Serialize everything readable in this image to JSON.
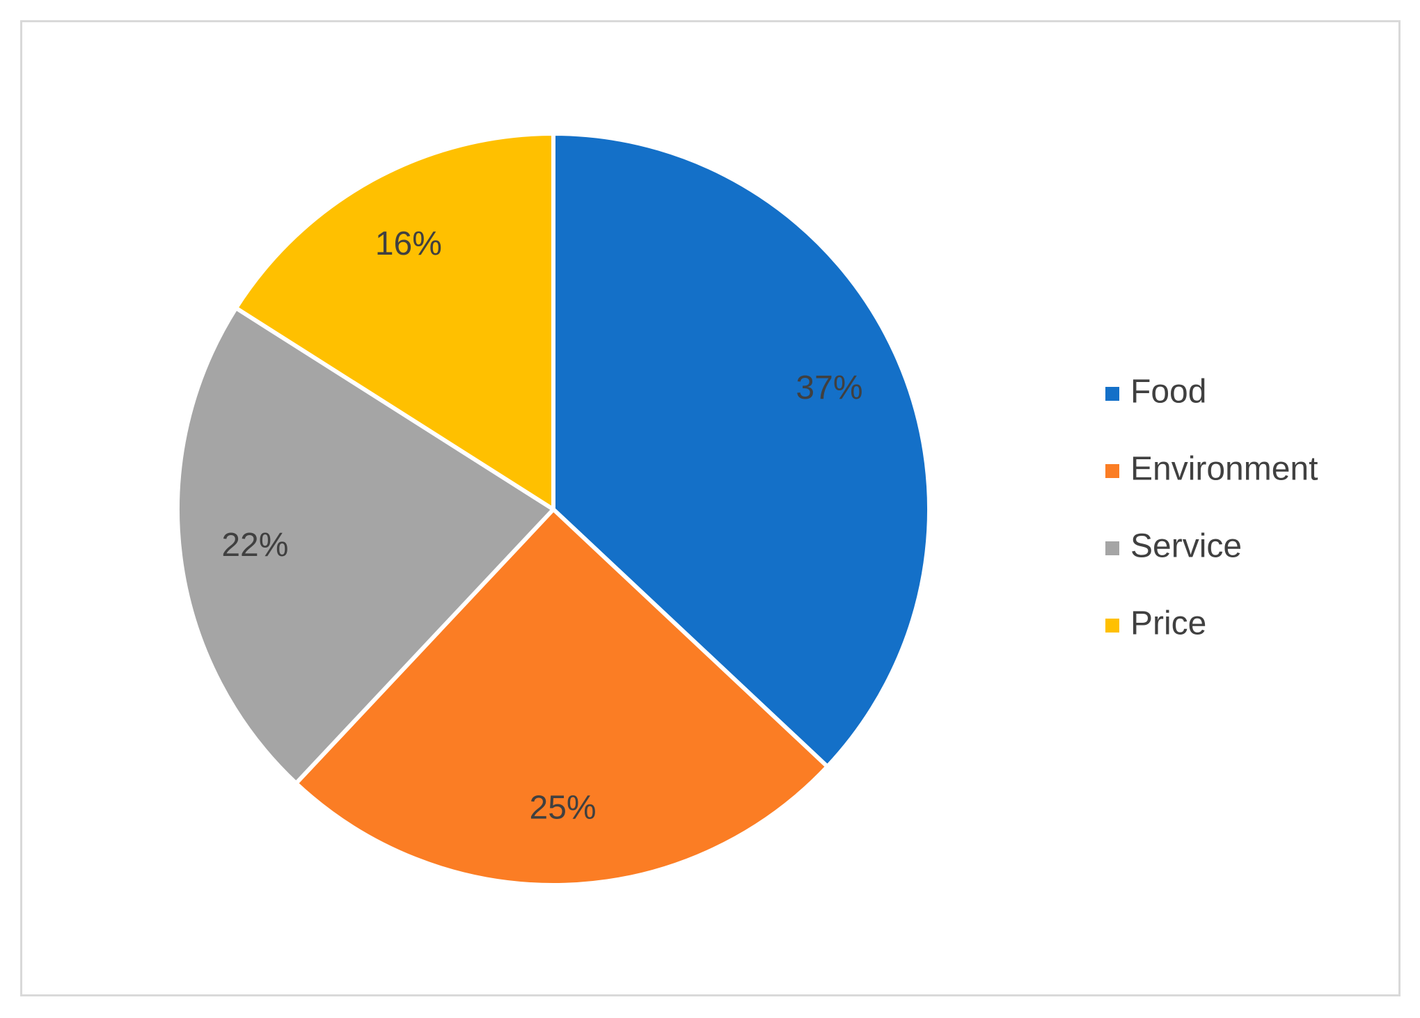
{
  "chart_data": {
    "type": "pie",
    "title": "",
    "categories": [
      "Food",
      "Environment",
      "Service",
      "Price"
    ],
    "values": [
      37,
      25,
      22,
      16
    ],
    "labels": [
      "37%",
      "25%",
      "22%",
      "16%"
    ],
    "colors": [
      "#1470C8",
      "#FB7D24",
      "#A5A5A5",
      "#FFC000"
    ],
    "legend_position": "right",
    "start_angle_deg": 0,
    "direction": "clockwise"
  }
}
